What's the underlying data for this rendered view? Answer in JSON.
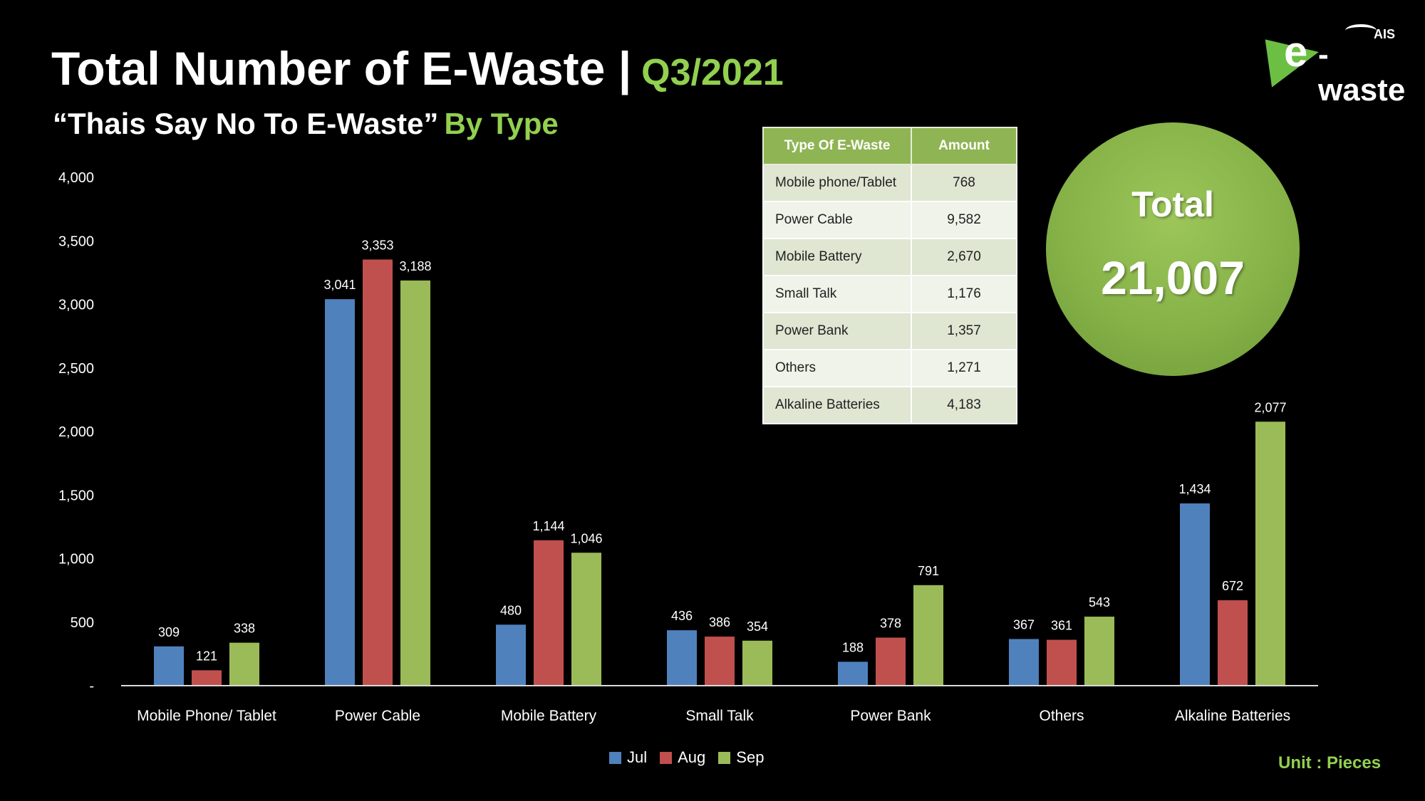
{
  "header": {
    "title": "Total Number of E-Waste |",
    "title_accent": "Q3/2021",
    "subtitle": "“Thais Say No To E-Waste”",
    "subtitle_accent": "By Type"
  },
  "logo": {
    "brand": "AIS",
    "e_letter": "e",
    "text": "-waste"
  },
  "summary_table": {
    "headers": [
      "Type Of E-Waste",
      "Amount"
    ],
    "rows": [
      {
        "type": "Mobile phone/Tablet",
        "amount": "768"
      },
      {
        "type": "Power Cable",
        "amount": "9,582"
      },
      {
        "type": "Mobile Battery",
        "amount": "2,670"
      },
      {
        "type": "Small Talk",
        "amount": "1,176"
      },
      {
        "type": "Power Bank",
        "amount": "1,357"
      },
      {
        "type": "Others",
        "amount": "1,271"
      },
      {
        "type": "Alkaline Batteries",
        "amount": "4,183"
      }
    ]
  },
  "total": {
    "label": "Total",
    "value": "21,007"
  },
  "unit_note": "Unit : Pieces",
  "colors": {
    "jul": "#4f81bd",
    "aug": "#c0504d",
    "sep": "#9bbb59",
    "accent": "#92d050"
  },
  "chart_data": {
    "type": "bar",
    "categories": [
      "Mobile Phone/ Tablet",
      "Power Cable",
      "Mobile Battery",
      "Small Talk",
      "Power Bank",
      "Others",
      "Alkaline Batteries"
    ],
    "series": [
      {
        "name": "Jul",
        "values": [
          309,
          3041,
          480,
          436,
          188,
          367,
          1434
        ],
        "labels": [
          "309",
          "3,041",
          "480",
          "436",
          "188",
          "367",
          "1,434"
        ]
      },
      {
        "name": "Aug",
        "values": [
          121,
          3353,
          1144,
          386,
          378,
          361,
          672
        ],
        "labels": [
          "121",
          "3,353",
          "1,144",
          "386",
          "378",
          "361",
          "672"
        ]
      },
      {
        "name": "Sep",
        "values": [
          338,
          3188,
          1046,
          354,
          791,
          543,
          2077
        ],
        "labels": [
          "338",
          "3,188",
          "1,046",
          "354",
          "791",
          "543",
          "2,077"
        ]
      }
    ],
    "y_ticks": [
      0,
      500,
      1000,
      1500,
      2000,
      2500,
      3000,
      3500,
      4000
    ],
    "y_tick_labels": [
      "-",
      "500",
      "1,000",
      "1,500",
      "2,000",
      "2,500",
      "3,000",
      "3,500",
      "4,000"
    ],
    "ylim": [
      0,
      4000
    ],
    "grid": false,
    "legend_position": "bottom"
  }
}
